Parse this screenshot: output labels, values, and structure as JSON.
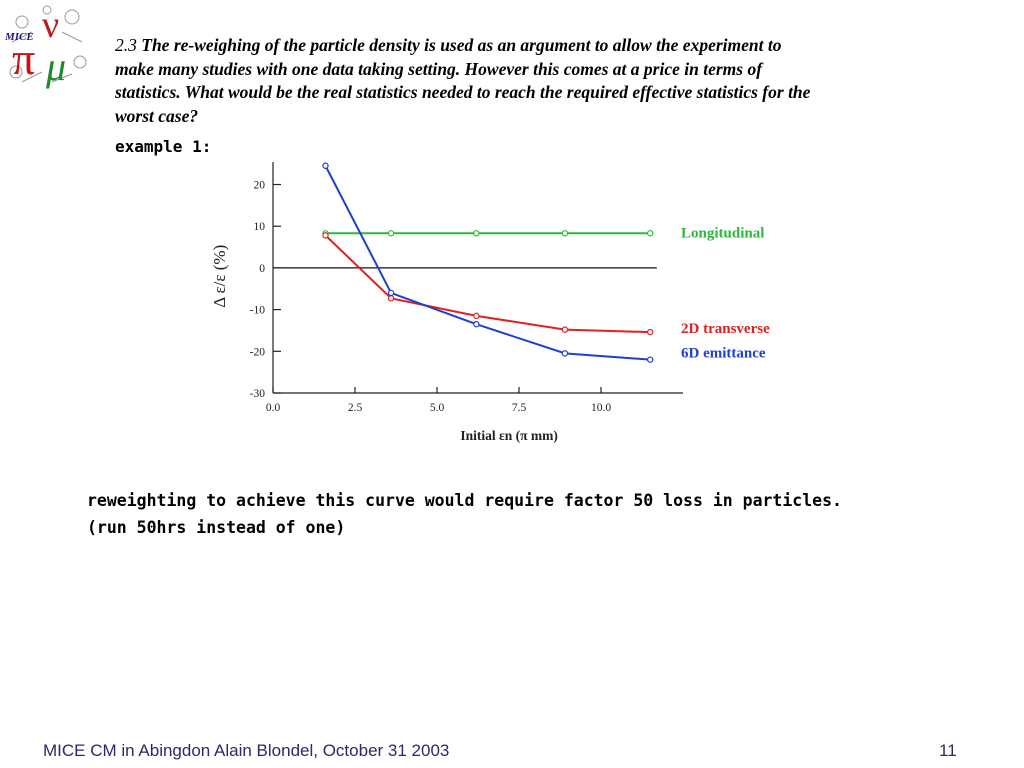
{
  "logo": {
    "text": "MICE"
  },
  "question": {
    "number": "2.3",
    "text": "The re-weighing of the particle density is used as an argument to allow the experiment to make many studies with one data taking setting.  However this comes at a price in terms of statistics.  What would be the real statistics needed to reach the required effective statistics for the worst case?"
  },
  "example_label": "example 1:",
  "chart_data": {
    "type": "line",
    "title": "",
    "xlabel": "Initial εn   (π mm)",
    "ylabel": "Δ ε/ε   (%)",
    "xlim": [
      0,
      12.5
    ],
    "ylim": [
      -30,
      23
    ],
    "x_ticks": [
      0.0,
      2.5,
      5.0,
      7.5,
      10.0
    ],
    "x_tick_labels": [
      "0.0",
      "2.5",
      "5.0",
      "7.5",
      "10.0"
    ],
    "y_ticks": [
      20,
      10,
      0,
      -10,
      -20,
      -30
    ],
    "y_tick_labels": [
      "20",
      "10",
      "0",
      "-10",
      "-20",
      "-30"
    ],
    "zero_line": true,
    "grid": false,
    "legend_placement": "right, inline labels",
    "series": [
      {
        "name": "Longitudinal",
        "color": "#2db83a",
        "x": [
          1.6,
          3.6,
          6.2,
          8.9,
          11.5
        ],
        "y": [
          8.3,
          8.3,
          8.3,
          8.3,
          8.3
        ]
      },
      {
        "name": "2D transverse",
        "color": "#e02020",
        "x": [
          1.6,
          3.6,
          6.2,
          8.9,
          11.5
        ],
        "y": [
          7.8,
          -7.3,
          -11.5,
          -14.8,
          -15.4
        ]
      },
      {
        "name": "6D emittance",
        "color": "#1f3fd0",
        "x": [
          1.6,
          3.6,
          6.2,
          8.9,
          11.5
        ],
        "y": [
          24.5,
          -6.0,
          -13.5,
          -20.5,
          -22.0
        ]
      }
    ]
  },
  "note": {
    "line1": "reweighting to achieve this curve would require factor 50 loss in particles.",
    "line2": "(run 50hrs instead of one)"
  },
  "footer": {
    "left": "MICE CM in Abingdon Alain Blondel,  October 31 2003",
    "page": "11"
  }
}
